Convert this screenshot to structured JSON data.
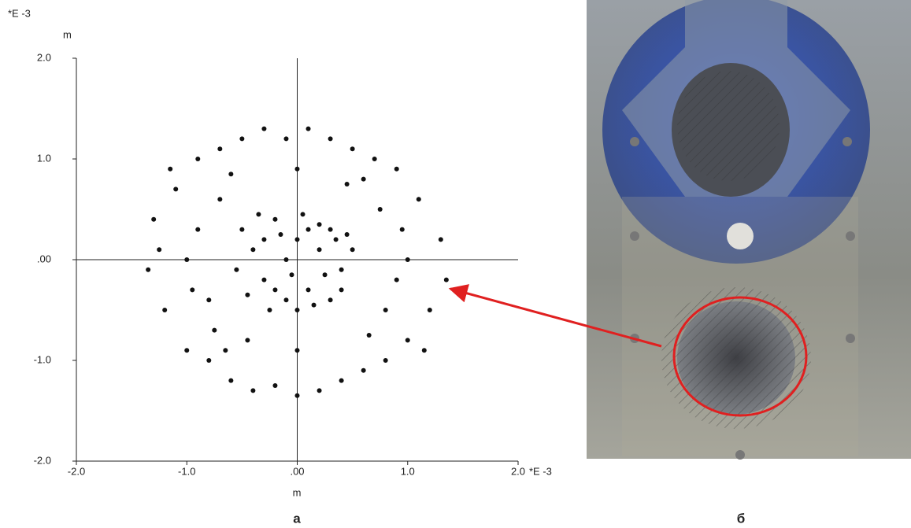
{
  "chart_data": {
    "type": "scatter",
    "y_unit": "*E  -3",
    "y_label": "m",
    "x_unit": "*E  -3",
    "x_label": "m",
    "color": "#111111",
    "x": [
      -0.5,
      -0.4,
      -0.3,
      -0.2,
      -0.1,
      0.0,
      0.1,
      0.2,
      0.3,
      0.4,
      0.5,
      -0.45,
      -0.35,
      -0.25,
      -0.15,
      -0.05,
      0.05,
      0.15,
      0.25,
      0.35,
      0.45,
      -0.55,
      0.0,
      -0.2,
      0.1,
      0.3,
      -0.3,
      0.2,
      -0.1,
      0.4,
      -1.3,
      -1.2,
      -1.1,
      -1.0,
      -0.9,
      -0.8,
      -0.7,
      -0.6,
      -0.5,
      -0.4,
      -0.3,
      -0.2,
      -0.1,
      0.0,
      0.1,
      0.2,
      0.3,
      0.4,
      0.5,
      0.6,
      0.7,
      0.8,
      0.9,
      1.0,
      1.1,
      1.2,
      1.3,
      1.35,
      -1.35,
      -1.25,
      -0.9,
      -0.8,
      -0.7,
      -0.75,
      0.75,
      0.8,
      0.9,
      0.95,
      -0.95,
      0.6,
      -0.6,
      0.65,
      -0.65,
      1.0,
      -1.0,
      0.0,
      0.0,
      1.15,
      -1.15,
      0.45,
      -0.45
    ],
    "values": [
      0.3,
      0.1,
      -0.2,
      0.4,
      0.0,
      0.2,
      -0.3,
      0.1,
      0.3,
      -0.1,
      0.1,
      -0.35,
      0.45,
      -0.5,
      0.25,
      -0.15,
      0.45,
      -0.45,
      -0.15,
      0.2,
      0.25,
      -0.1,
      -0.5,
      -0.3,
      0.3,
      -0.4,
      0.2,
      0.35,
      -0.4,
      -0.3,
      0.4,
      -0.5,
      0.7,
      -0.9,
      1.0,
      -1.0,
      1.1,
      -1.2,
      1.2,
      -1.3,
      1.3,
      -1.25,
      1.2,
      -1.35,
      1.3,
      -1.3,
      1.2,
      -1.2,
      1.1,
      -1.1,
      1.0,
      -1.0,
      0.9,
      -0.8,
      0.6,
      -0.5,
      0.2,
      -0.2,
      -0.1,
      0.1,
      0.3,
      -0.4,
      0.6,
      -0.7,
      0.5,
      -0.5,
      -0.2,
      0.3,
      -0.3,
      0.8,
      0.85,
      -0.75,
      -0.9,
      0.0,
      0.0,
      0.9,
      -0.9,
      -0.9,
      0.9,
      0.75,
      -0.8
    ],
    "xlim": [
      -2,
      2
    ],
    "ylim": [
      -2,
      2
    ],
    "xticks": [
      {
        "value": -2,
        "label": "-2.0"
      },
      {
        "value": -1,
        "label": "-1.0"
      },
      {
        "value": 0,
        "label": ".00"
      },
      {
        "value": 1,
        "label": "1.0"
      },
      {
        "value": 2,
        "label": "2.0"
      }
    ],
    "yticks": [
      {
        "value": -2,
        "label": "-2.0"
      },
      {
        "value": -1,
        "label": "-1.0"
      },
      {
        "value": 0,
        "label": ".00"
      },
      {
        "value": 1,
        "label": "1.0"
      },
      {
        "value": 2,
        "label": "2.0"
      }
    ]
  },
  "panel_labels": [
    "а",
    "б"
  ]
}
